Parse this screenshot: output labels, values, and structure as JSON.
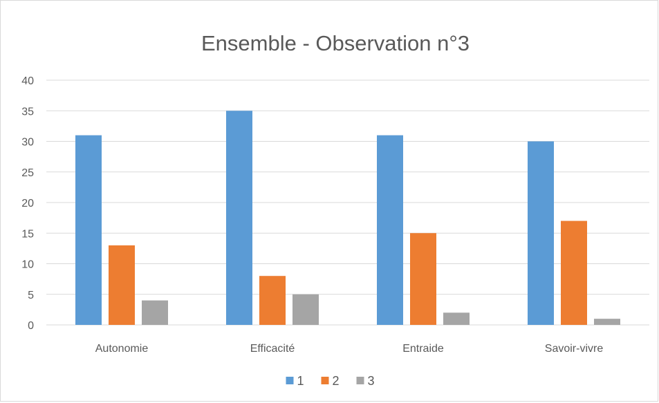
{
  "chart_data": {
    "type": "bar",
    "title": "Ensemble - Observation n°3",
    "categories": [
      "Autonomie",
      "Efficacité",
      "Entraide",
      "Savoir-vivre"
    ],
    "series": [
      {
        "name": "1",
        "values": [
          31,
          35,
          31,
          30
        ],
        "color": "#5b9bd5"
      },
      {
        "name": "2",
        "values": [
          13,
          8,
          15,
          17
        ],
        "color": "#ed7d31"
      },
      {
        "name": "3",
        "values": [
          4,
          5,
          2,
          1
        ],
        "color": "#a5a5a5"
      }
    ],
    "ylim": [
      0,
      40
    ],
    "yticks": [
      "0",
      "5",
      "10",
      "15",
      "20",
      "25",
      "30",
      "35",
      "40"
    ],
    "grid": true,
    "legend_position": "bottom",
    "gridline_color": "#d9d9d9"
  }
}
